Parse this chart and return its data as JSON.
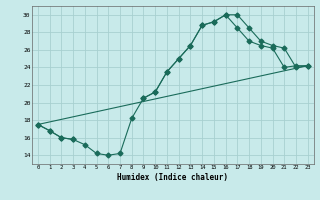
{
  "xlabel": "Humidex (Indice chaleur)",
  "xlim": [
    -0.5,
    23.5
  ],
  "ylim": [
    13.0,
    31.0
  ],
  "yticks": [
    14,
    16,
    18,
    20,
    22,
    24,
    26,
    28,
    30
  ],
  "xticks": [
    0,
    1,
    2,
    3,
    4,
    5,
    6,
    7,
    8,
    9,
    10,
    11,
    12,
    13,
    14,
    15,
    16,
    17,
    18,
    19,
    20,
    21,
    22,
    23
  ],
  "bg_color": "#c8eaea",
  "grid_color": "#a8d0d0",
  "line_color": "#1a6b5a",
  "curve_dip_x": [
    0,
    1,
    2,
    3,
    4,
    5,
    6,
    7,
    8,
    9,
    10,
    11,
    12,
    13,
    14,
    15,
    16,
    17,
    18,
    19,
    20,
    21,
    22,
    23
  ],
  "curve_dip_y": [
    17.5,
    16.8,
    16.0,
    15.8,
    15.2,
    14.2,
    14.0,
    14.2,
    18.2,
    20.5,
    21.2,
    23.5,
    25.0,
    26.5,
    28.8,
    29.2,
    30.0,
    30.0,
    28.5,
    27.0,
    26.5,
    26.2,
    24.0,
    24.2
  ],
  "curve_upper_x": [
    0,
    1,
    2,
    3,
    9,
    10,
    11,
    12,
    13,
    14,
    15,
    16,
    17,
    18,
    19,
    20,
    21,
    22,
    23
  ],
  "curve_upper_y": [
    17.5,
    16.8,
    16.0,
    15.8,
    20.5,
    21.2,
    23.5,
    25.0,
    26.5,
    28.8,
    29.2,
    30.0,
    28.5,
    27.0,
    26.5,
    26.2,
    24.0,
    24.2,
    24.2
  ],
  "curve_line_x": [
    0,
    23
  ],
  "curve_line_y": [
    17.5,
    24.2
  ],
  "markersize": 2.5
}
